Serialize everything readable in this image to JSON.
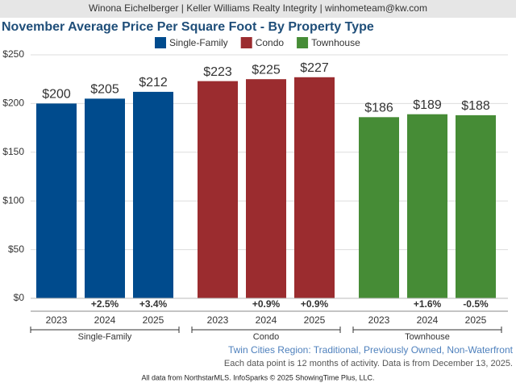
{
  "chart_data": {
    "type": "bar",
    "header": "Winona Eichelberger | Keller Williams Realty Integrity | winhometeam@kw.com",
    "title": "November Average Price Per Square Foot - By Property Type",
    "categories": [
      "Single-Family",
      "Condo",
      "Townhouse"
    ],
    "years": [
      "2023",
      "2024",
      "2025"
    ],
    "series": [
      {
        "name": "Single-Family",
        "color": "#004b8d",
        "values": [
          200,
          205,
          212
        ],
        "value_labels": [
          "$200",
          "$205",
          "$212"
        ],
        "changes": [
          null,
          "+2.5%",
          "+3.4%"
        ]
      },
      {
        "name": "Condo",
        "color": "#9b2c2f",
        "values": [
          223,
          225,
          227
        ],
        "value_labels": [
          "$223",
          "$225",
          "$227"
        ],
        "changes": [
          null,
          "+0.9%",
          "+0.9%"
        ]
      },
      {
        "name": "Townhouse",
        "color": "#468c36",
        "values": [
          186,
          189,
          188
        ],
        "value_labels": [
          "$186",
          "$189",
          "$188"
        ],
        "changes": [
          null,
          "+1.6%",
          "-0.5%"
        ]
      }
    ],
    "ylim": [
      0,
      250
    ],
    "yticks": [
      {
        "value": 0,
        "label": "$0"
      },
      {
        "value": 50,
        "label": "$50"
      },
      {
        "value": 100,
        "label": "$100"
      },
      {
        "value": 150,
        "label": "$150"
      },
      {
        "value": 200,
        "label": "$200"
      },
      {
        "value": 250,
        "label": "$250"
      }
    ],
    "grid": true,
    "footnotes": {
      "region": "Twin Cities Region: Traditional, Previously Owned, Non-Waterfront",
      "note": "Each data point is 12 months of activity. Data is from December 13, 2025.",
      "source": "All data from NorthstarMLS. InfoSparks © 2025 ShowingTime Plus, LLC."
    }
  }
}
